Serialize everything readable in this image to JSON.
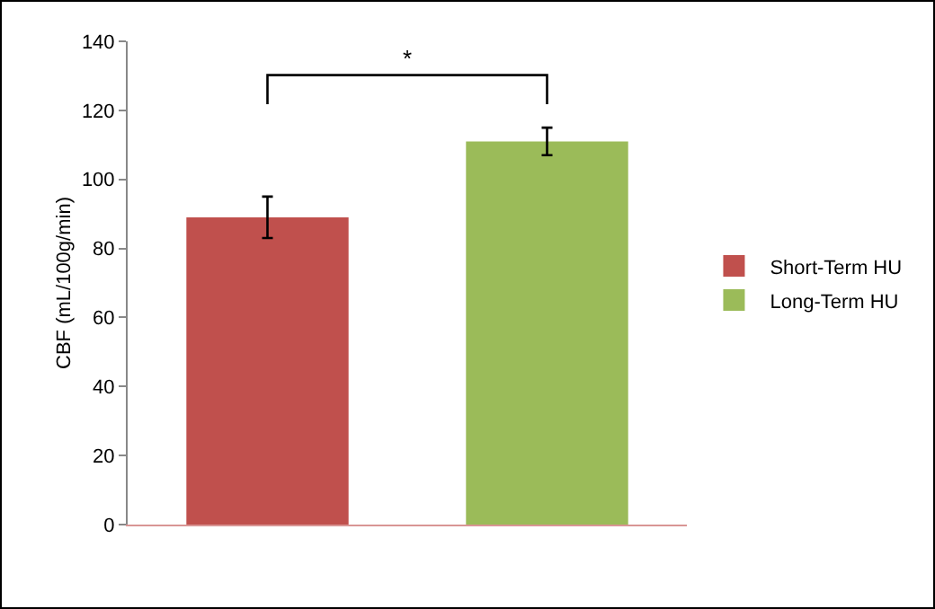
{
  "chart_data": {
    "type": "bar",
    "ylabel": "CBF (mL/100g/min)",
    "categories": [
      null,
      null
    ],
    "series": [
      {
        "name": "Short-Term HU",
        "color": "#c0504d",
        "values": [
          89,
          null
        ],
        "errors": [
          6,
          null
        ]
      },
      {
        "name": "Long-Term HU",
        "color": "#9bbb59",
        "values": [
          null,
          111
        ],
        "errors": [
          null,
          4
        ]
      }
    ],
    "ylim": [
      0,
      140
    ],
    "yticks": [
      0,
      20,
      40,
      60,
      80,
      100,
      120,
      140
    ],
    "grid": false,
    "legend": "right",
    "annotations": [
      "*"
    ]
  }
}
